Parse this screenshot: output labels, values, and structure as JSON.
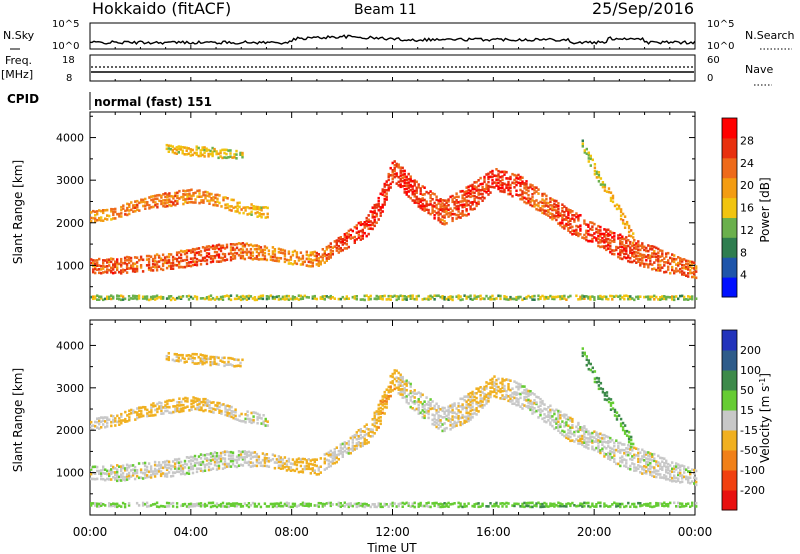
{
  "header": {
    "station": "Hokkaido (fitACF)",
    "beam": "Beam 11",
    "date": "25/Sep/2016"
  },
  "status_panel": {
    "nsky_label": "N.Sky",
    "nsky_ticks": [
      "10^5",
      "10^0"
    ],
    "nsearch_label": "N.Search",
    "nsearch_ticks": [
      "10^5",
      "10^0"
    ],
    "freq_label": "Freq.",
    "freq_unit": "[MHz]",
    "freq_ticks": [
      "18",
      "8"
    ],
    "nave_label": "Nave",
    "nave_ticks": [
      "60",
      "0"
    ],
    "cpid_label": "CPID",
    "cpid_value": "normal (fast) 151"
  },
  "x_axis": {
    "label": "Time UT",
    "ticks": [
      "00:00",
      "04:00",
      "08:00",
      "12:00",
      "16:00",
      "20:00",
      "00:00"
    ]
  },
  "y_axis": {
    "label": "Slant Range [km]",
    "ticks": [
      "1000",
      "2000",
      "3000",
      "4000"
    ]
  },
  "power_colorbar": {
    "label": "Power [dB]",
    "ticks": [
      "4",
      "8",
      "12",
      "16",
      "20",
      "24",
      "28"
    ],
    "colors": [
      "#0010ff",
      "#1e55aa",
      "#2e7d4f",
      "#6ab04c",
      "#f1c40f",
      "#f39c12",
      "#ee6a1a",
      "#e8300e",
      "#ff0000"
    ]
  },
  "velocity_colorbar": {
    "label": "Velocity [m s",
    "label_sup": "-1",
    "label_end": "]",
    "ticks": [
      "200",
      "100",
      "50",
      "15",
      "-15",
      "-50",
      "-100",
      "-200"
    ],
    "colors": [
      "#2233bb",
      "#2e5c8a",
      "#3d8a4a",
      "#66cc33",
      "#c8c8c8",
      "#f0b020",
      "#f08018",
      "#f04010",
      "#e81010"
    ]
  },
  "chart_data": [
    {
      "type": "heatmap",
      "panel": "power",
      "xlabel": "Time UT",
      "ylabel": "Slant Range [km]",
      "x_unit": "hours UT",
      "xlim": [
        0,
        24
      ],
      "ylim": [
        0,
        4600
      ],
      "colorbar": "Power [dB]",
      "zlim": [
        0,
        32
      ],
      "echo_bands": [
        {
          "x": [
            0,
            1,
            2,
            3,
            4,
            5,
            6,
            7,
            8,
            9,
            10,
            11,
            11.5,
            12,
            12.5,
            13,
            14,
            15,
            16,
            17,
            18,
            19,
            20,
            21,
            22,
            23,
            24
          ],
          "center": [
            1050,
            1050,
            1100,
            1150,
            1250,
            1350,
            1400,
            1350,
            1250,
            1200,
            1600,
            2000,
            2500,
            3300,
            3000,
            2700,
            2300,
            2600,
            3100,
            2900,
            2500,
            2100,
            1800,
            1500,
            1300,
            1100,
            950
          ],
          "width": [
            350,
            400,
            400,
            400,
            450,
            450,
            400,
            350,
            350,
            400,
            400,
            500,
            600,
            500,
            600,
            600,
            600,
            700,
            500,
            600,
            500,
            600,
            500,
            600,
            600,
            500,
            400
          ],
          "power": [
            24,
            25,
            24,
            24,
            25,
            26,
            24,
            22,
            20,
            22,
            26,
            27,
            28,
            27,
            27,
            26,
            25,
            26,
            28,
            26,
            24,
            26,
            27,
            26,
            25,
            24,
            24
          ]
        },
        {
          "x": [
            0,
            1,
            2,
            3,
            4,
            5,
            6,
            7
          ],
          "center": [
            2200,
            2300,
            2500,
            2600,
            2700,
            2600,
            2400,
            2300
          ],
          "width": [
            300,
            300,
            300,
            350,
            350,
            300,
            300,
            300
          ],
          "power": [
            20,
            21,
            22,
            22,
            21,
            20,
            18,
            17
          ]
        },
        {
          "x": [
            3,
            4,
            5,
            6
          ],
          "center": [
            3800,
            3750,
            3700,
            3650
          ],
          "width": [
            200,
            250,
            250,
            200
          ],
          "power": [
            16,
            17,
            16,
            15
          ]
        },
        {
          "x": [
            19.5,
            20,
            21,
            21.5
          ],
          "center": [
            3900,
            3300,
            2300,
            1700
          ],
          "width": [
            250,
            300,
            300,
            300
          ],
          "power": [
            14,
            16,
            18,
            20
          ]
        },
        {
          "x": [
            0,
            3,
            6,
            9,
            12,
            15,
            18,
            21,
            24
          ],
          "center": [
            300,
            300,
            300,
            300,
            300,
            300,
            300,
            300,
            300
          ],
          "width": [
            120,
            120,
            120,
            120,
            120,
            120,
            120,
            120,
            120
          ],
          "power": [
            14,
            14,
            14,
            14,
            14,
            14,
            14,
            14,
            14
          ]
        }
      ]
    },
    {
      "type": "heatmap",
      "panel": "velocity",
      "xlabel": "Time UT",
      "ylabel": "Slant Range [km]",
      "x_unit": "hours UT",
      "xlim": [
        0,
        24
      ],
      "ylim": [
        0,
        4600
      ],
      "colorbar": "Velocity [m s-1]",
      "zlim": [
        -250,
        250
      ],
      "echo_bands": [
        {
          "x": [
            0,
            1,
            2,
            3,
            4,
            5,
            6,
            7,
            8,
            9,
            10,
            11,
            11.5,
            12,
            12.5,
            13,
            14,
            15,
            16,
            17,
            18,
            19,
            20,
            21,
            22,
            23,
            24
          ],
          "center": [
            1050,
            1050,
            1100,
            1150,
            1250,
            1350,
            1400,
            1350,
            1250,
            1200,
            1600,
            2000,
            2500,
            3300,
            3000,
            2700,
            2300,
            2600,
            3100,
            2900,
            2500,
            2100,
            1800,
            1500,
            1300,
            1100,
            950
          ],
          "width": [
            350,
            400,
            400,
            400,
            450,
            450,
            400,
            350,
            350,
            400,
            400,
            500,
            600,
            500,
            600,
            600,
            600,
            700,
            500,
            600,
            500,
            600,
            500,
            600,
            600,
            500,
            400
          ],
          "velocity": [
            0,
            0,
            0,
            -5,
            0,
            0,
            0,
            -10,
            -30,
            -20,
            0,
            -20,
            -40,
            -40,
            0,
            0,
            0,
            -20,
            -30,
            0,
            0,
            0,
            0,
            0,
            0,
            0,
            0
          ]
        },
        {
          "x": [
            0,
            1,
            2,
            3,
            4,
            5,
            6,
            7
          ],
          "center": [
            2200,
            2300,
            2500,
            2600,
            2700,
            2600,
            2400,
            2300
          ],
          "width": [
            300,
            300,
            300,
            350,
            350,
            300,
            300,
            300
          ],
          "velocity": [
            0,
            -20,
            -30,
            -20,
            -25,
            -20,
            0,
            0
          ]
        },
        {
          "x": [
            3,
            4,
            5,
            6
          ],
          "center": [
            3800,
            3750,
            3700,
            3650
          ],
          "width": [
            200,
            250,
            250,
            200
          ],
          "velocity": [
            -20,
            -30,
            -20,
            -10
          ]
        },
        {
          "x": [
            19.5,
            20,
            21,
            21.5
          ],
          "center": [
            3900,
            3300,
            2300,
            1700
          ],
          "width": [
            250,
            300,
            300,
            300
          ],
          "velocity": [
            60,
            60,
            50,
            40
          ]
        },
        {
          "x": [
            0,
            3,
            6,
            9,
            12,
            15,
            18,
            21,
            24
          ],
          "center": [
            300,
            300,
            300,
            300,
            300,
            300,
            300,
            300,
            300
          ],
          "width": [
            120,
            120,
            120,
            120,
            120,
            120,
            120,
            120,
            120
          ],
          "velocity": [
            20,
            20,
            30,
            20,
            20,
            40,
            40,
            40,
            20
          ]
        }
      ]
    }
  ]
}
